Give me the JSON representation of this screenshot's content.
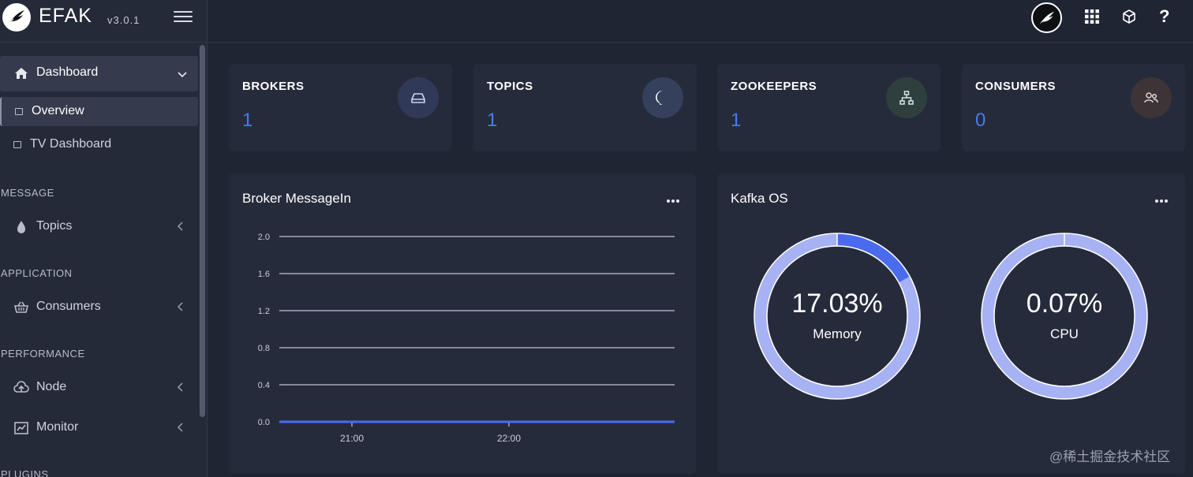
{
  "brand": {
    "name": "EFAK",
    "version": "v3.0.1"
  },
  "sidebar": {
    "dashboard": {
      "label": "Dashboard"
    },
    "dashboard_children": [
      {
        "label": "Overview",
        "active": true
      },
      {
        "label": "TV Dashboard",
        "active": false
      }
    ],
    "sections": [
      {
        "title": "MESSAGE",
        "items": [
          {
            "label": "Topics",
            "icon": "droplet-icon"
          }
        ]
      },
      {
        "title": "APPLICATION",
        "items": [
          {
            "label": "Consumers",
            "icon": "basket-icon"
          }
        ]
      },
      {
        "title": "PERFORMANCE",
        "items": [
          {
            "label": "Node",
            "icon": "cloud-upload-icon"
          },
          {
            "label": "Monitor",
            "icon": "line-chart-icon"
          }
        ]
      },
      {
        "title": "PLUGINS",
        "items": []
      }
    ]
  },
  "topbar": {
    "help_label": "?",
    "icons": [
      "avatar-logo-icon",
      "apps-grid-icon",
      "box-icon",
      "help-icon"
    ]
  },
  "stats": [
    {
      "title": "BROKERS",
      "value": "1",
      "icon": "hard-drive-icon",
      "icon_bg": "#303a58",
      "icon_color": "#c8d2f2"
    },
    {
      "title": "TOPICS",
      "value": "1",
      "icon": "messenger-icon",
      "icon_bg": "#34405c",
      "icon_color": "#ffffff"
    },
    {
      "title": "ZOOKEEPERS",
      "value": "1",
      "icon": "sitemap-icon",
      "icon_bg": "#2f3f3e",
      "icon_color": "#d7e6dd"
    },
    {
      "title": "CONSUMERS",
      "value": "0",
      "icon": "users-icon",
      "icon_bg": "#3d3438",
      "icon_color": "#e2d3d6"
    }
  ],
  "broker_panel": {
    "title": "Broker MessageIn"
  },
  "os_panel": {
    "title": "Kafka OS",
    "gauges": [
      {
        "value_text": "17.03%",
        "label": "Memory",
        "percent": 17.03
      },
      {
        "value_text": "0.07%",
        "label": "CPU",
        "percent": 0.07
      }
    ]
  },
  "colors": {
    "accent": "#4a79f2",
    "gauge_fill": "#4a6bee",
    "gauge_track": "#a6b2f3",
    "background": "#202534",
    "card": "#262b3c"
  },
  "chart_data": {
    "type": "line",
    "title": "",
    "xlabel": "",
    "ylabel": "",
    "ylim": [
      0,
      2.0
    ],
    "yticks": [
      "2.0",
      "1.6",
      "1.2",
      "0.8",
      "0.4",
      "0.0"
    ],
    "xticks": [
      "21:00",
      "22:00"
    ],
    "series": [
      {
        "values": [
          0,
          0,
          0,
          0,
          0,
          0,
          0,
          0
        ]
      }
    ]
  },
  "watermark": "@稀土掘金技术社区"
}
